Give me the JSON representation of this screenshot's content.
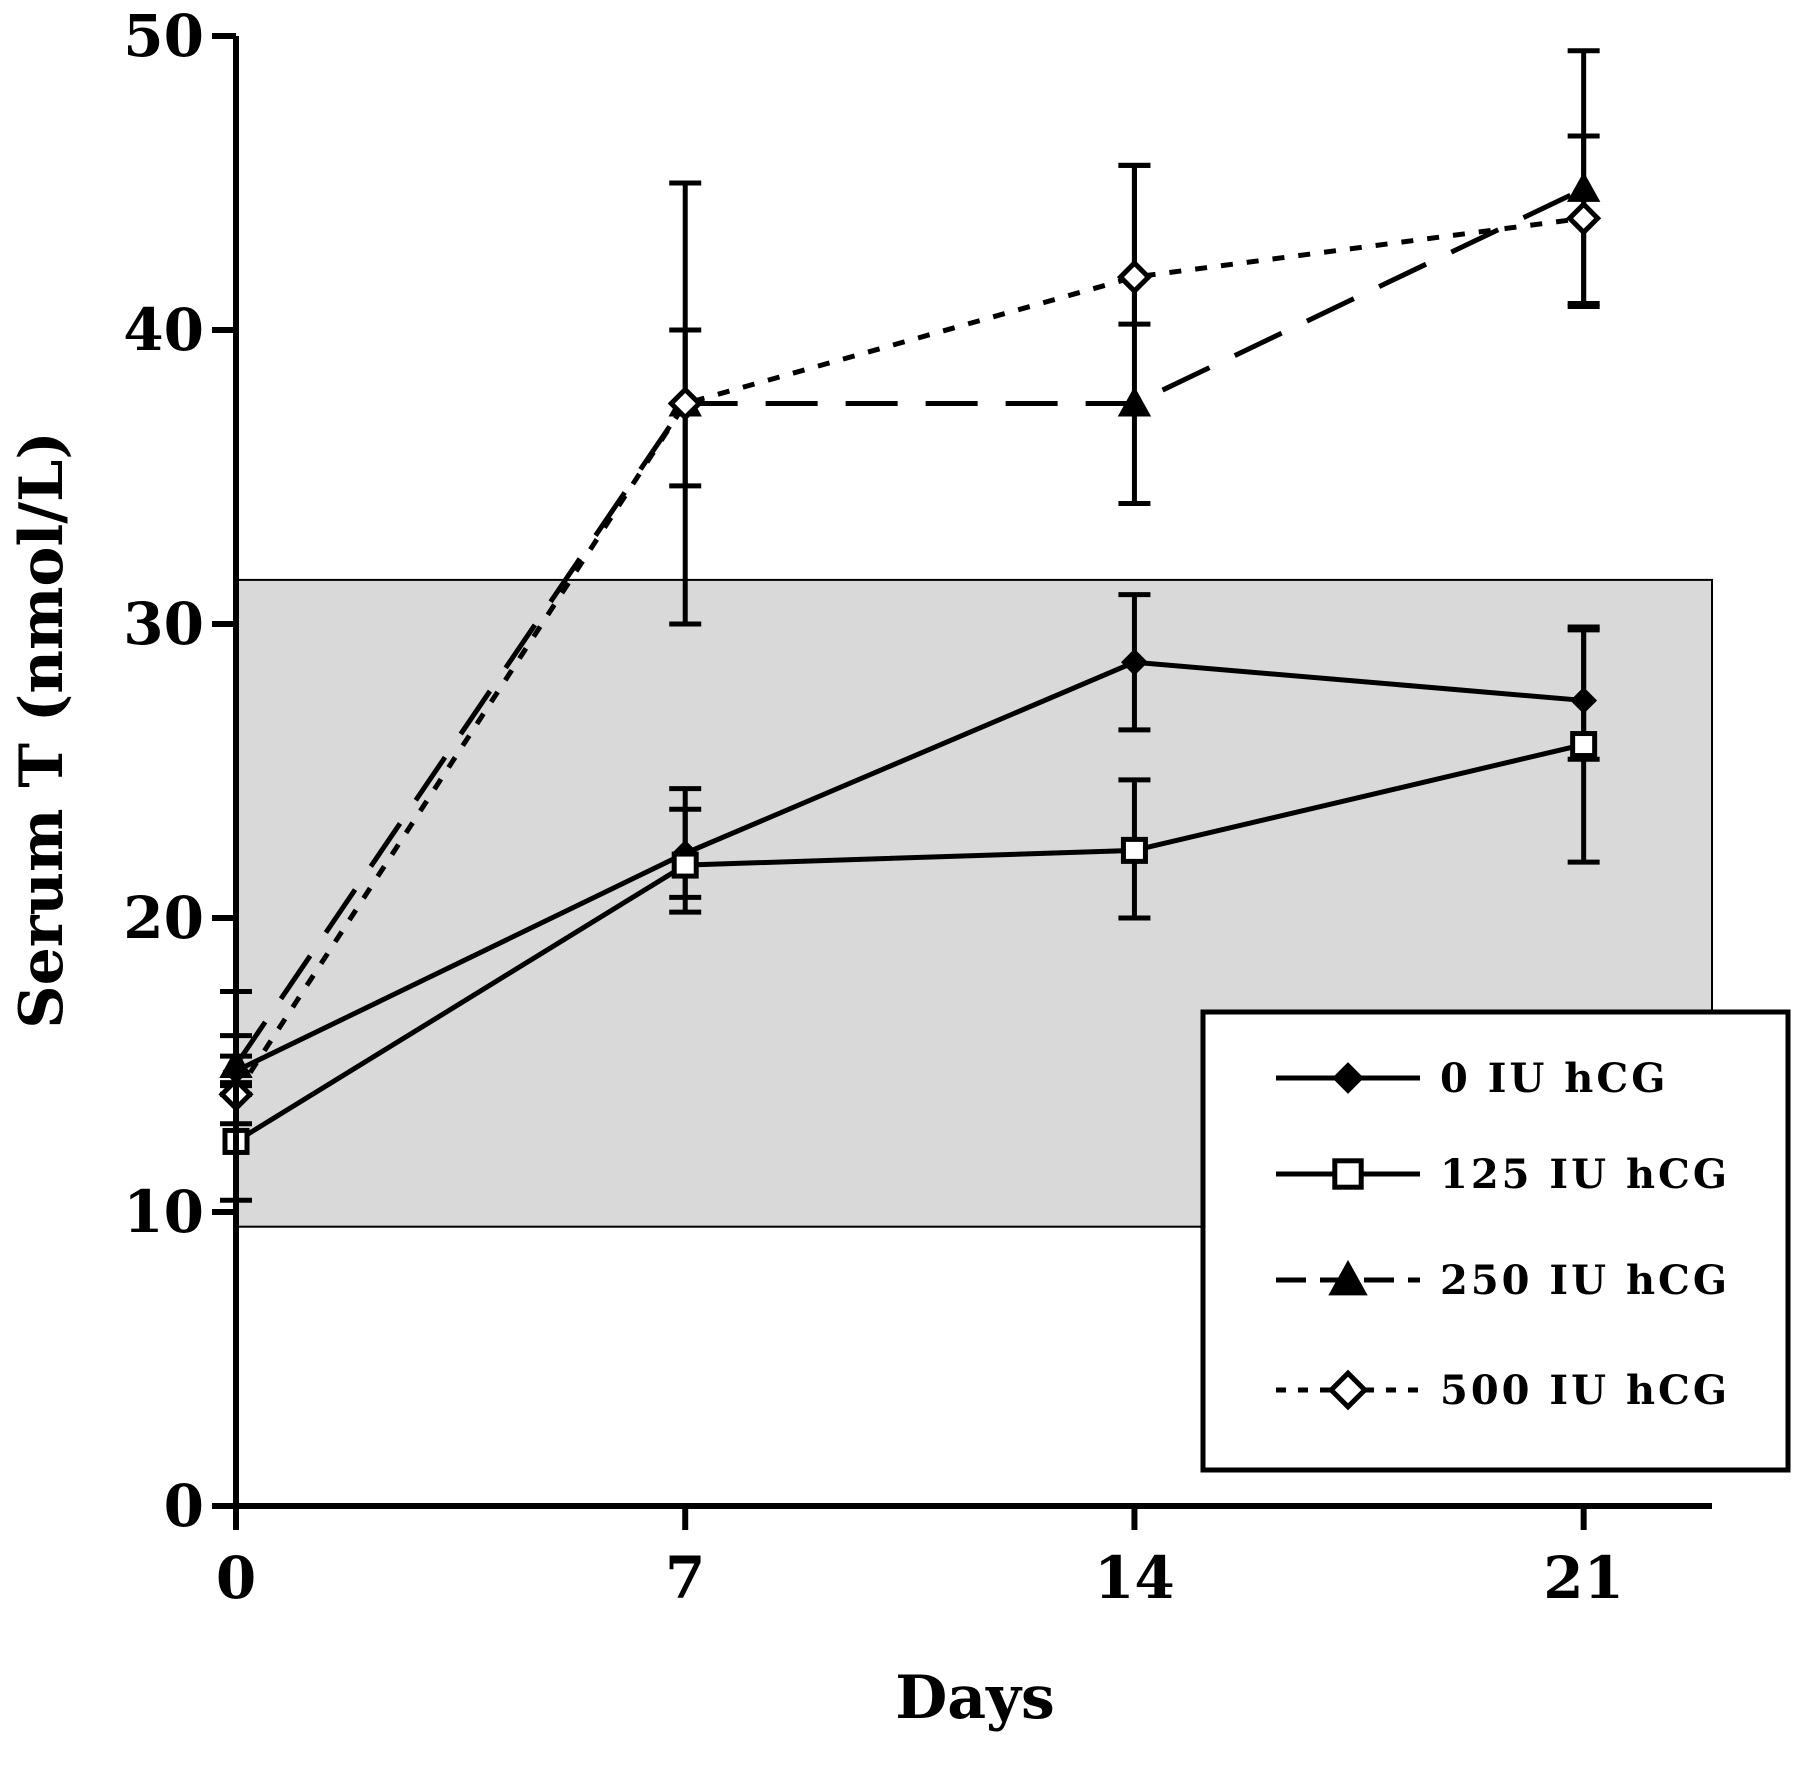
{
  "chart_data": {
    "type": "line",
    "title": "",
    "xlabel": "Days",
    "ylabel": "Serum T (nmol/L)",
    "x": [
      0,
      7,
      14,
      21
    ],
    "xlim": [
      0,
      23
    ],
    "ylim": [
      0,
      50
    ],
    "x_ticks": [
      "0",
      "7",
      "14",
      "21"
    ],
    "y_ticks": [
      "0",
      "10",
      "20",
      "30",
      "40",
      "50"
    ],
    "grid": false,
    "legend_position": "bottom-right",
    "reference_band": {
      "y_min": 9.5,
      "y_max": 31.5,
      "color": "#d9d9d9"
    },
    "series": [
      {
        "name": "0 IU hCG",
        "marker": "filled-diamond",
        "dash": "solid",
        "y": [
          14.8,
          22.2,
          28.7,
          27.4
        ],
        "err_low": [
          0.5,
          1.5,
          2.3,
          2.0
        ],
        "err_high": [
          0.5,
          1.5,
          2.3,
          2.4
        ]
      },
      {
        "name": "125 IU hCG",
        "marker": "open-square",
        "dash": "solid",
        "y": [
          12.4,
          21.8,
          22.3,
          25.9
        ],
        "err_low": [
          2.0,
          1.6,
          2.3,
          4.0
        ],
        "err_high": [
          2.0,
          2.6,
          2.4,
          4.0
        ]
      },
      {
        "name": "250 IU hCG",
        "marker": "filled-triangle",
        "dash": "long-dash",
        "y": [
          15.0,
          37.5,
          37.5,
          44.8
        ],
        "err_low": [
          1.0,
          7.5,
          3.4,
          3.9
        ],
        "err_high": [
          1.0,
          7.5,
          8.1,
          4.7
        ]
      },
      {
        "name": "500 IU hCG",
        "marker": "open-diamond",
        "dash": "dotted",
        "y": [
          14.0,
          37.5,
          41.8,
          43.8
        ],
        "err_low": [
          1.0,
          2.8,
          1.6,
          3.0
        ],
        "err_high": [
          3.5,
          2.5,
          3.8,
          2.8
        ]
      }
    ]
  }
}
